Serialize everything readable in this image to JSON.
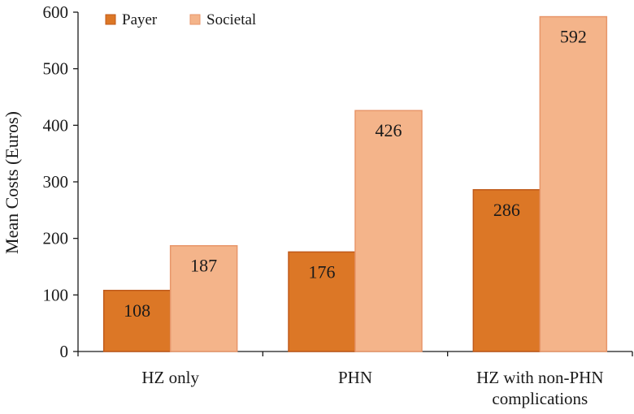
{
  "chart_data": {
    "type": "bar",
    "categories": [
      "HZ only",
      "PHN",
      "HZ with non-PHN complications"
    ],
    "category_lines": [
      [
        "HZ only"
      ],
      [
        "PHN"
      ],
      [
        "HZ with non-PHN",
        "complications"
      ]
    ],
    "series": [
      {
        "name": "Payer",
        "values": [
          108,
          176,
          286
        ],
        "color": "#dc7726",
        "stroke": "#c05a1a"
      },
      {
        "name": "Societal",
        "values": [
          187,
          426,
          592
        ],
        "color": "#f4b48a",
        "stroke": "#e8966a"
      }
    ],
    "data_labels": [
      [
        "108",
        "176",
        "286"
      ],
      [
        "187",
        "426",
        "592"
      ]
    ],
    "ylabel": "Mean Costs (Euros)",
    "ylim": [
      0,
      600
    ],
    "yticks": [
      0,
      100,
      200,
      300,
      400,
      500,
      600
    ],
    "legend": {
      "position": "top-left",
      "items": [
        "Payer",
        "Societal"
      ]
    },
    "grid": false
  }
}
